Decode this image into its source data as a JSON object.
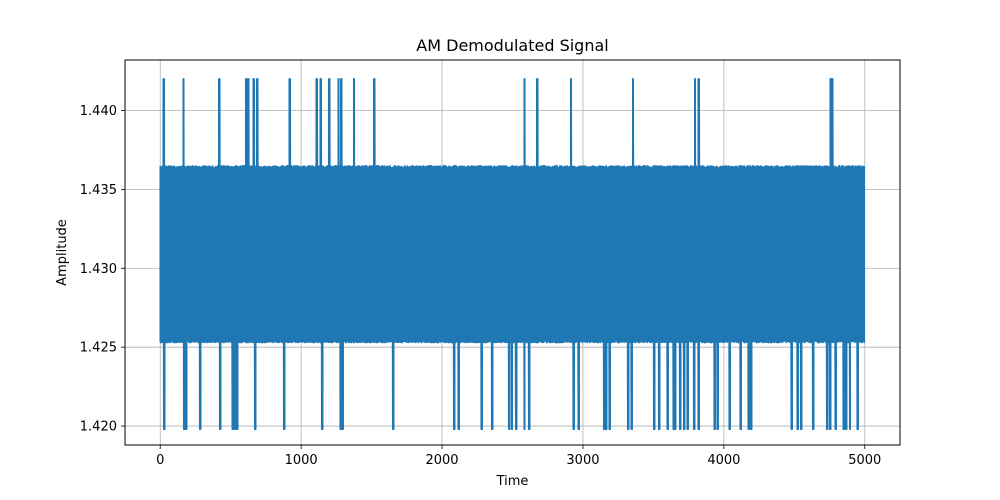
{
  "chart_data": {
    "type": "line",
    "title": "AM Demodulated Signal",
    "xlabel": "Time",
    "ylabel": "Amplitude",
    "xlim": [
      -250,
      5250
    ],
    "ylim": [
      1.4188,
      1.4432
    ],
    "x_ticks": [
      0,
      1000,
      2000,
      3000,
      4000,
      5000
    ],
    "x_tick_labels": [
      "0",
      "1000",
      "2000",
      "3000",
      "4000",
      "5000"
    ],
    "y_ticks": [
      1.42,
      1.425,
      1.43,
      1.435,
      1.44
    ],
    "y_tick_labels": [
      "1.420",
      "1.425",
      "1.430",
      "1.435",
      "1.440"
    ],
    "grid": true,
    "series": [
      {
        "color": "#1f77b4",
        "n_samples": 5000,
        "x_range": [
          0,
          4999
        ],
        "levels": {
          "core_band": [
            1.4254,
            1.431
          ],
          "upper_band": [
            1.431,
            1.4365
          ],
          "spike_max": 1.442,
          "dip_min": 1.4198
        },
        "upward_spike_times": [
          25,
          165,
          420,
          610,
          625,
          665,
          690,
          920,
          1110,
          1140,
          1200,
          1265,
          1285,
          1375,
          1520,
          2585,
          2675,
          2915,
          3355,
          3795,
          3820,
          4760,
          4770
        ],
        "downward_dip_times": [
          30,
          170,
          185,
          285,
          425,
          515,
          530,
          545,
          675,
          880,
          1150,
          1280,
          1295,
          1655,
          2085,
          2120,
          2280,
          2355,
          2475,
          2495,
          2525,
          2585,
          2620,
          2935,
          2970,
          3150,
          3165,
          3190,
          3320,
          3345,
          3505,
          3540,
          3600,
          3645,
          3655,
          3690,
          3720,
          3745,
          3790,
          3820,
          3935,
          3955,
          4040,
          4120,
          4175,
          4195,
          4480,
          4525,
          4550,
          4635,
          4735,
          4755,
          4795,
          4850,
          4870,
          4895,
          4950
        ]
      }
    ]
  }
}
